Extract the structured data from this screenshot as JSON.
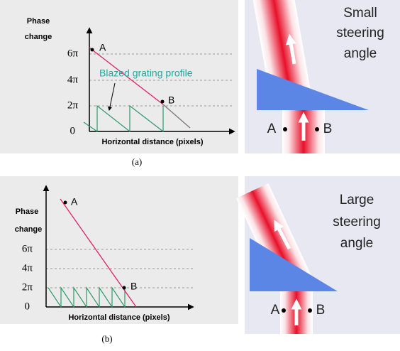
{
  "panels": [
    {
      "caption": "(a)",
      "plot": {
        "y_axis_title_lines": [
          "Phase",
          "change"
        ],
        "tick_labels": [
          "0",
          "2π",
          "4π",
          "6π"
        ],
        "x_axis_title": "Horizontal distance (pixels)",
        "annotation": "Blazed grating profile",
        "point_a": "A",
        "point_b": "B"
      },
      "beam": {
        "text_lines": [
          "Small",
          "steering",
          "angle"
        ],
        "point_a": "A",
        "point_b": "B"
      }
    },
    {
      "caption": "(b)",
      "plot": {
        "y_axis_title_lines": [
          "Phase",
          "change"
        ],
        "tick_labels": [
          "0",
          "2π",
          "4π",
          "6π"
        ],
        "x_axis_title": "Horizontal distance (pixels)",
        "point_a": "A",
        "point_b": "B"
      },
      "beam": {
        "text_lines": [
          "Large",
          "steering",
          "angle"
        ],
        "point_a": "A",
        "point_b": "B"
      }
    }
  ]
}
